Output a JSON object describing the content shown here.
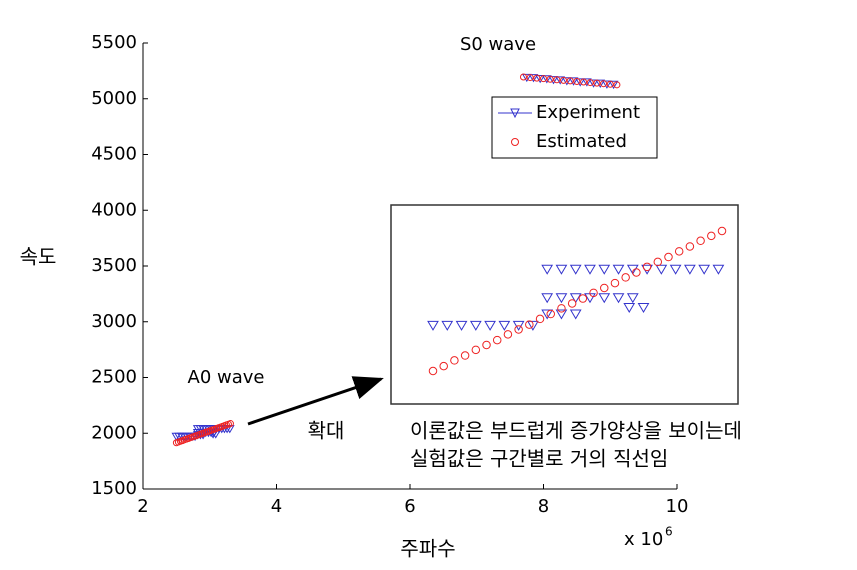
{
  "chart_data": {
    "type": "scatter",
    "y_label": "속도",
    "x_label": "주파수",
    "x_exponent_base": "x 10",
    "x_exponent": "6",
    "xlim": [
      2,
      10
    ],
    "xticks": [
      2,
      4,
      6,
      8,
      10
    ],
    "ylim": [
      1500,
      5500
    ],
    "yticks": [
      1500,
      2000,
      2500,
      3000,
      3500,
      4000,
      4500,
      5000,
      5500
    ],
    "legend": "upper right",
    "annotations": {
      "s0": "S0 wave",
      "a0": "A0 wave",
      "zoom": "확대",
      "note": [
        "이론값은 부드럽게 증가양상을 보이는데",
        "실험값은 구간별로 거의 직선임"
      ]
    },
    "series": [
      {
        "name": "Experiment",
        "color": "#3333cc",
        "marker": "triangle",
        "clusters": [
          {
            "x": [
              2.5,
              2.54,
              2.58,
              2.62,
              2.66,
              2.7,
              2.74,
              2.78,
              2.82,
              2.86,
              2.9,
              2.82,
              2.86,
              2.9,
              2.94,
              2.98,
              3.02,
              3.06,
              3.05,
              3.09,
              2.82,
              2.86,
              2.9,
              2.94,
              2.98,
              3.02,
              3.06,
              3.1,
              3.14,
              3.18,
              3.22,
              3.26,
              3.3
            ],
            "values": [
              1971,
              1971,
              1971,
              1971,
              1971,
              1971,
              1971,
              1971,
              1985,
              1985,
              1985,
              2005,
              2005,
              2005,
              2005,
              2005,
              2005,
              2005,
              1993,
              1993,
              2040,
              2040,
              2040,
              2040,
              2040,
              2040,
              2040,
              2040,
              2040,
              2040,
              2040,
              2040,
              2040
            ]
          },
          {
            "x": [
              7.75,
              7.85,
              7.95,
              8.05,
              8.15,
              8.25,
              8.35,
              8.45,
              8.55,
              8.65,
              8.75,
              8.85,
              8.95,
              9.05
            ],
            "values": [
              5190,
              5188,
              5180,
              5178,
              5170,
              5168,
              5160,
              5158,
              5150,
              5150,
              5140,
              5138,
              5130,
              5128
            ]
          }
        ]
      },
      {
        "name": "Estimated",
        "color": "#ee2222",
        "marker": "circle",
        "clusters": [
          {
            "x": [
              2.5,
              2.53,
              2.56,
              2.59,
              2.62,
              2.65,
              2.68,
              2.71,
              2.74,
              2.77,
              2.8,
              2.83,
              2.86,
              2.89,
              2.92,
              2.95,
              2.98,
              3.01,
              3.04,
              3.07,
              3.1,
              3.13,
              3.16,
              3.19,
              3.22,
              3.25,
              3.28,
              3.31
            ],
            "values": [
              1915,
              1921,
              1928,
              1934,
              1941,
              1947,
              1953,
              1960,
              1966,
              1972,
              1979,
              1985,
              1992,
              1998,
              2004,
              2011,
              2017,
              2023,
              2030,
              2036,
              2043,
              2049,
              2055,
              2062,
              2068,
              2075,
              2081,
              2087
            ]
          },
          {
            "x": [
              7.7,
              7.8,
              7.9,
              8.0,
              8.1,
              8.2,
              8.3,
              8.4,
              8.5,
              8.6,
              8.7,
              8.8,
              8.9,
              9.0,
              9.1
            ],
            "values": [
              5195,
              5190,
              5185,
              5180,
              5175,
              5170,
              5165,
              5160,
              5155,
              5150,
              5145,
              5140,
              5135,
              5130,
              5125
            ]
          }
        ]
      }
    ]
  }
}
